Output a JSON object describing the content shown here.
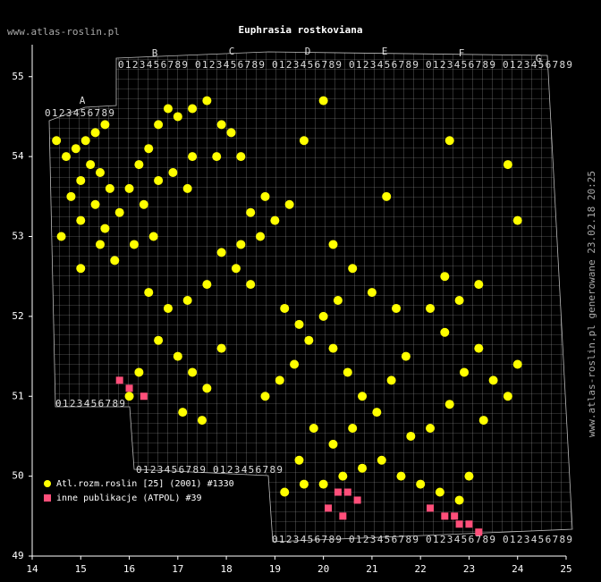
{
  "header": {
    "site": "www.atlas-roslin.pl",
    "side_note": "www.atlas-roslin.pl generowane 23.02.18 20:25"
  },
  "grid_labels": {
    "columns": [
      "A",
      "B",
      "C",
      "D",
      "E",
      "F",
      "G"
    ],
    "digits": "0123456789"
  },
  "chart_data": {
    "type": "scatter",
    "title": "Euphrasia rostkoviana",
    "xlim": [
      14,
      25
    ],
    "ylim": [
      49,
      55.4
    ],
    "xticks": [
      14,
      15,
      16,
      17,
      18,
      19,
      20,
      21,
      22,
      23,
      24,
      25
    ],
    "yticks": [
      49,
      50,
      51,
      52,
      53,
      54,
      55
    ],
    "series": [
      {
        "name": "Atl.rozm.roslin [25] (2001) #1330",
        "color": "#ffff00",
        "marker": "circle",
        "x": [
          14.5,
          14.7,
          14.9,
          15.1,
          15.3,
          15.5,
          15.2,
          15.0,
          14.8,
          15.4,
          15.6,
          15.3,
          15.0,
          15.5,
          15.8,
          16.0,
          16.2,
          16.4,
          16.6,
          16.8,
          17.0,
          17.3,
          17.6,
          17.9,
          18.1,
          18.3,
          17.8,
          17.3,
          16.9,
          17.2,
          16.6,
          16.3,
          14.6,
          15.0,
          15.4,
          15.7,
          16.1,
          16.5,
          17.9,
          18.2,
          18.5,
          18.3,
          18.7,
          19.0,
          19.3,
          18.8,
          18.5,
          17.6,
          17.2,
          16.8,
          16.4,
          16.6,
          17.0,
          17.3,
          17.6,
          17.9,
          16.2,
          16.0,
          17.1,
          17.5,
          18.8,
          19.1,
          19.4,
          19.7,
          20.0,
          20.3,
          19.5,
          19.2,
          20.2,
          20.5,
          20.8,
          21.1,
          21.4,
          21.7,
          20.6,
          20.2,
          19.8,
          19.5,
          19.2,
          19.6,
          20.0,
          20.4,
          20.8,
          21.2,
          21.6,
          22.0,
          22.4,
          22.8,
          23.0,
          21.8,
          22.2,
          22.6,
          22.9,
          23.2,
          23.5,
          23.8,
          24.0,
          23.3,
          22.5,
          22.2,
          22.8,
          23.2,
          22.5,
          21.5,
          21.0,
          20.6,
          20.2,
          21.3,
          22.6,
          23.8,
          24.0,
          20.0,
          19.6
        ],
        "values": [
          54.2,
          54.0,
          54.1,
          54.2,
          54.3,
          54.4,
          53.9,
          53.7,
          53.5,
          53.8,
          53.6,
          53.4,
          53.2,
          53.1,
          53.3,
          53.6,
          53.9,
          54.1,
          54.4,
          54.6,
          54.5,
          54.6,
          54.7,
          54.4,
          54.3,
          54.0,
          54.0,
          54.0,
          53.8,
          53.6,
          53.7,
          53.4,
          53.0,
          52.6,
          52.9,
          52.7,
          52.9,
          53.0,
          52.8,
          52.6,
          52.4,
          52.9,
          53.0,
          53.2,
          53.4,
          53.5,
          53.3,
          52.4,
          52.2,
          52.1,
          52.3,
          51.7,
          51.5,
          51.3,
          51.1,
          51.6,
          51.3,
          51.0,
          50.8,
          50.7,
          51.0,
          51.2,
          51.4,
          51.7,
          52.0,
          52.2,
          51.9,
          52.1,
          51.6,
          51.3,
          51.0,
          50.8,
          51.2,
          51.5,
          50.6,
          50.4,
          50.6,
          50.2,
          49.8,
          49.9,
          49.9,
          50.0,
          50.1,
          50.2,
          50.0,
          49.9,
          49.8,
          49.7,
          50.0,
          50.5,
          50.6,
          50.9,
          51.3,
          51.6,
          51.2,
          51.0,
          51.4,
          50.7,
          51.8,
          52.1,
          52.2,
          52.4,
          52.5,
          52.1,
          52.3,
          52.6,
          52.9,
          53.5,
          54.2,
          53.9,
          53.2,
          54.7,
          54.2
        ]
      },
      {
        "name": "inne publikacje (ATPOL) #39",
        "color": "#ff4f7a",
        "marker": "square",
        "x": [
          15.8,
          16.0,
          16.3,
          20.3,
          20.5,
          20.7,
          20.1,
          20.4,
          22.2,
          22.5,
          22.8,
          23.0,
          23.2,
          22.7
        ],
        "values": [
          51.2,
          51.1,
          51.0,
          49.8,
          49.8,
          49.7,
          49.6,
          49.5,
          49.6,
          49.5,
          49.4,
          49.4,
          49.3,
          49.5
        ]
      }
    ]
  }
}
